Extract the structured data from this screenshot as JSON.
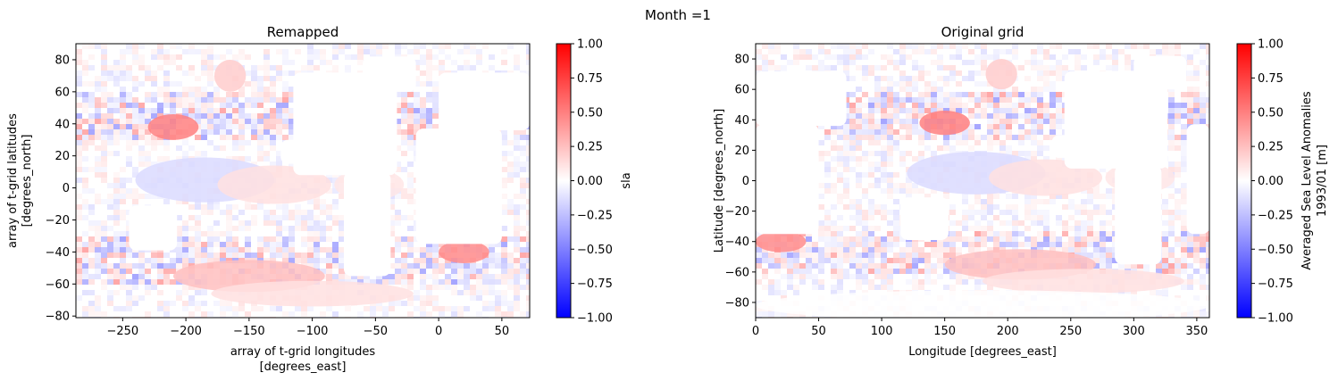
{
  "figure": {
    "suptitle": "Month =1"
  },
  "chart_data": [
    {
      "type": "heatmap",
      "title": "Remapped",
      "xlabel": [
        "array of t-grid longitudes",
        "[degrees_east]"
      ],
      "ylabel": [
        "array of t-grid latitudes",
        "[degrees_north]"
      ],
      "xlim": [
        -287,
        72
      ],
      "ylim": [
        -81,
        90
      ],
      "xticks": [
        -250,
        -200,
        -150,
        -100,
        -50,
        0,
        50
      ],
      "xtick_labels": [
        "−250",
        "−200",
        "−150",
        "−100",
        "−50",
        "0",
        "50"
      ],
      "yticks": [
        -80,
        -60,
        -40,
        -20,
        0,
        20,
        40,
        60,
        80
      ],
      "ytick_labels": [
        "−80",
        "−60",
        "−40",
        "−20",
        "0",
        "20",
        "40",
        "60",
        "80"
      ],
      "colormap": "bwr",
      "colorbar": {
        "label": [
          "sla"
        ],
        "range": [
          -1,
          1
        ],
        "ticks": [
          -1,
          -0.75,
          -0.5,
          -0.25,
          0,
          0.25,
          0.5,
          0.75,
          1
        ],
        "tick_labels": [
          "−1.00",
          "−0.75",
          "−0.50",
          "−0.25",
          "0.00",
          "0.25",
          "0.50",
          "0.75",
          "1.00"
        ]
      },
      "land_boxes": [
        [
          -115,
          -33,
          8,
          72
        ],
        [
          -75,
          -38,
          -55,
          10
        ],
        [
          -60,
          -18,
          60,
          82
        ],
        [
          -18,
          50,
          -35,
          37
        ],
        [
          0,
          72,
          36,
          72
        ],
        [
          -245,
          -207,
          -39,
          -11
        ],
        [
          -125,
          -80,
          15,
          30
        ]
      ],
      "features": [
        {
          "lon": -185,
          "lat": 5,
          "w": 110,
          "h": 14,
          "v": -0.14
        },
        {
          "lon": -130,
          "lat": 2,
          "w": 90,
          "h": 12,
          "v": 0.12
        },
        {
          "lon": -55,
          "lat": 2,
          "w": 55,
          "h": 10,
          "v": 0.1
        },
        {
          "lon": -210,
          "lat": 38,
          "w": 40,
          "h": 8,
          "v": 0.5
        },
        {
          "lon": -50,
          "lat": 40,
          "w": 25,
          "h": 6,
          "v": 0.5
        },
        {
          "lon": 20,
          "lat": -40,
          "w": 40,
          "h": 7,
          "v": 0.45
        },
        {
          "lon": -150,
          "lat": -55,
          "w": 120,
          "h": 10,
          "v": 0.25
        },
        {
          "lon": -100,
          "lat": -66,
          "w": 160,
          "h": 8,
          "v": 0.12
        },
        {
          "lon": -165,
          "lat": 70,
          "w": 25,
          "h": 10,
          "v": 0.2
        },
        {
          "lon": -45,
          "lat": 65,
          "w": 25,
          "h": 12,
          "v": -0.2
        }
      ]
    },
    {
      "type": "heatmap",
      "title": "Original grid",
      "xlabel": [
        "Longitude [degrees_east]"
      ],
      "ylabel": [
        "Latitude [degrees_north]"
      ],
      "xlim": [
        0,
        360
      ],
      "ylim": [
        -90,
        90
      ],
      "xticks": [
        0,
        50,
        100,
        150,
        200,
        250,
        300,
        350
      ],
      "xtick_labels": [
        "0",
        "50",
        "100",
        "150",
        "200",
        "250",
        "300",
        "350"
      ],
      "yticks": [
        -80,
        -60,
        -40,
        -20,
        0,
        20,
        40,
        60,
        80
      ],
      "ytick_labels": [
        "−80",
        "−60",
        "−40",
        "−20",
        "0",
        "20",
        "40",
        "60",
        "80"
      ],
      "colormap": "bwr",
      "colorbar": {
        "label": [
          "Averaged Sea Level Anomalies",
          "1993/01 [m]"
        ],
        "range": [
          -1,
          1
        ],
        "ticks": [
          -1,
          -0.75,
          -0.5,
          -0.25,
          0,
          0.25,
          0.5,
          0.75,
          1
        ],
        "tick_labels": [
          "−1.00",
          "−0.75",
          "−0.50",
          "−0.25",
          "0.00",
          "0.25",
          "0.50",
          "0.75",
          "1.00"
        ]
      },
      "land_boxes": [
        [
          245,
          327,
          8,
          72
        ],
        [
          285,
          322,
          -55,
          10
        ],
        [
          300,
          342,
          60,
          82
        ],
        [
          0,
          50,
          -35,
          37
        ],
        [
          342,
          360,
          -35,
          37
        ],
        [
          0,
          72,
          36,
          72
        ],
        [
          115,
          153,
          -39,
          -11
        ],
        [
          235,
          280,
          15,
          30
        ]
      ],
      "features": [
        {
          "lon": 175,
          "lat": 5,
          "w": 110,
          "h": 14,
          "v": -0.14
        },
        {
          "lon": 230,
          "lat": 2,
          "w": 90,
          "h": 12,
          "v": 0.12
        },
        {
          "lon": 305,
          "lat": 2,
          "w": 55,
          "h": 10,
          "v": 0.1
        },
        {
          "lon": 150,
          "lat": 38,
          "w": 40,
          "h": 8,
          "v": 0.5
        },
        {
          "lon": 310,
          "lat": 40,
          "w": 25,
          "h": 6,
          "v": 0.5
        },
        {
          "lon": 20,
          "lat": -40,
          "w": 40,
          "h": 7,
          "v": 0.45
        },
        {
          "lon": 210,
          "lat": -55,
          "w": 120,
          "h": 10,
          "v": 0.25
        },
        {
          "lon": 260,
          "lat": -66,
          "w": 160,
          "h": 8,
          "v": 0.12
        },
        {
          "lon": 195,
          "lat": 70,
          "w": 25,
          "h": 10,
          "v": 0.2
        },
        {
          "lon": 315,
          "lat": 65,
          "w": 25,
          "h": 12,
          "v": -0.2
        },
        {
          "lon": 180,
          "lat": -82,
          "w": 360,
          "h": 10,
          "v": 0.0
        }
      ]
    }
  ]
}
